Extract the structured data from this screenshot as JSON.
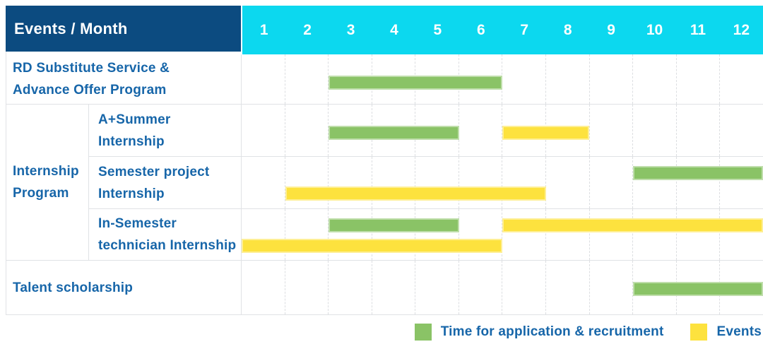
{
  "header": {
    "title": "Events / Month"
  },
  "colors": {
    "header_bg": "#0C4B80",
    "months_bg": "#0CD8EF",
    "green": "#8AC366",
    "yellow": "#FDE23E",
    "text_blue": "#1766A9"
  },
  "legend": [
    {
      "type": "application",
      "label": "Time for application & recruitment"
    },
    {
      "type": "event",
      "label": "Events"
    }
  ],
  "chart_data": {
    "type": "gantt",
    "title": "Events / Month",
    "months": [
      "1",
      "2",
      "3",
      "4",
      "5",
      "6",
      "7",
      "8",
      "9",
      "10",
      "11",
      "12"
    ],
    "x_range": [
      1,
      12
    ],
    "legend_position": "bottom-right",
    "bar_types": {
      "application": {
        "label": "Time for application & recruitment",
        "color": "#8AC366"
      },
      "event": {
        "label": "Events",
        "color": "#FDE23E"
      }
    },
    "rows": [
      {
        "label": "RD Substitute Service &\nAdvance Offer Program",
        "group": null,
        "bars": [
          {
            "type": "application",
            "start": 3,
            "end": 6,
            "line": "center"
          }
        ]
      },
      {
        "label": "A+Summer\nInternship",
        "group": "Internship\nProgram",
        "bars": [
          {
            "type": "application",
            "start": 3,
            "end": 5,
            "line": "center"
          },
          {
            "type": "event",
            "start": 7,
            "end": 8,
            "line": "center"
          }
        ]
      },
      {
        "label": "Semester project\nInternship",
        "group": "Internship\nProgram",
        "bars": [
          {
            "type": "application",
            "start": 10,
            "end": 12,
            "line": "top"
          },
          {
            "type": "event",
            "start": 2,
            "end": 7,
            "line": "bottom"
          }
        ]
      },
      {
        "label": "In-Semester\ntechnician Internship",
        "group": "Internship\nProgram",
        "bars": [
          {
            "type": "application",
            "start": 3,
            "end": 5,
            "line": "top"
          },
          {
            "type": "event",
            "start": 7,
            "end": 12,
            "line": "top"
          },
          {
            "type": "event",
            "start": 1,
            "end": 6,
            "line": "bottom"
          }
        ]
      },
      {
        "label": "Talent scholarship",
        "group": null,
        "bars": [
          {
            "type": "application",
            "start": 10,
            "end": 12,
            "line": "center"
          }
        ]
      }
    ]
  }
}
